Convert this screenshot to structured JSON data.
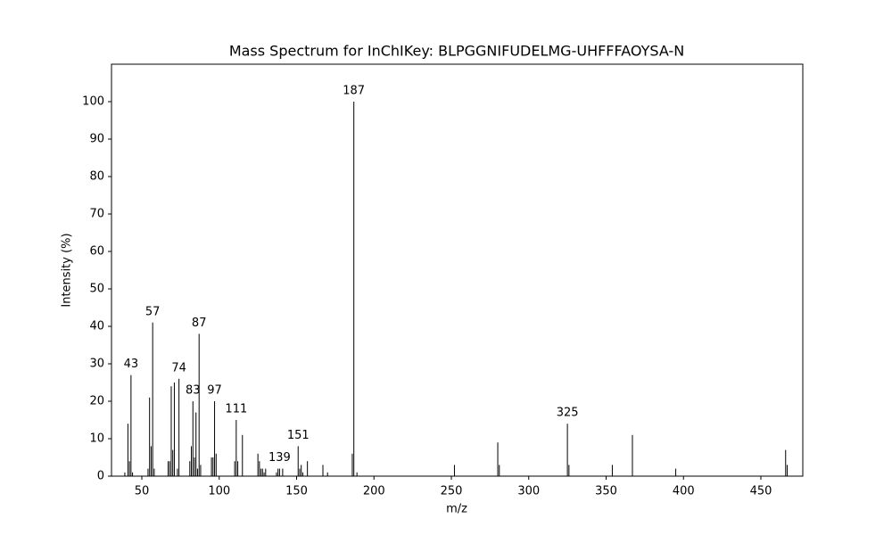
{
  "chart_data": {
    "type": "stem",
    "title": "Mass Spectrum for InChIKey: BLPGGNIFUDELMG-UHFFFAOYSA-N",
    "xlabel": "m/z",
    "ylabel": "Intensity (%)",
    "x": [
      39,
      41,
      42,
      43,
      44,
      54,
      55,
      56,
      57,
      58,
      67,
      68,
      69,
      70,
      71,
      73,
      74,
      81,
      82,
      83,
      84,
      85,
      86,
      87,
      88,
      95,
      96,
      97,
      98,
      110,
      111,
      112,
      115,
      125,
      126,
      127,
      128,
      129,
      130,
      137,
      138,
      139,
      141,
      151,
      152,
      153,
      154,
      157,
      167,
      170,
      186,
      187,
      189,
      252,
      280,
      281,
      325,
      326,
      354,
      367,
      395,
      466,
      467
    ],
    "values": [
      1,
      14,
      4,
      27,
      1,
      2,
      21,
      8,
      41,
      2,
      4,
      4,
      24,
      7,
      25,
      2,
      26,
      4,
      8,
      20,
      5,
      17,
      2,
      38,
      3,
      5,
      5,
      20,
      6,
      4,
      15,
      4,
      11,
      6,
      4,
      2,
      2,
      1,
      2,
      1,
      2,
      2,
      2,
      8,
      2,
      3,
      1,
      4,
      3,
      1,
      6,
      100,
      1,
      3,
      9,
      3,
      14,
      3,
      3,
      11,
      2,
      7,
      3
    ],
    "peak_labels": [
      43,
      57,
      74,
      83,
      87,
      97,
      111,
      139,
      151,
      187,
      325
    ],
    "color": "#000000",
    "xlim": [
      30.4,
      477.1
    ],
    "ylim": [
      0,
      110
    ],
    "xticks": [
      50,
      100,
      150,
      200,
      250,
      300,
      350,
      400,
      450
    ],
    "yticks": [
      0,
      10,
      20,
      30,
      40,
      50,
      60,
      70,
      80,
      90,
      100
    ],
    "grid": false
  }
}
